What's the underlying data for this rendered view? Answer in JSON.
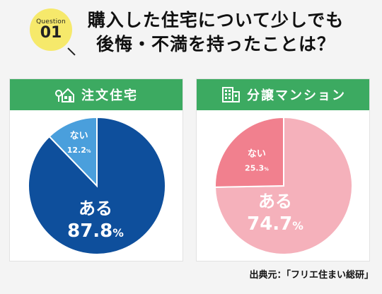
{
  "question": {
    "word": "Question",
    "number": "01"
  },
  "title": {
    "line1": "購入した住宅について少しでも",
    "line2": "後悔・不満を持ったことは？"
  },
  "source": "出典元：「フリエ住まい総研」",
  "chart_data": [
    {
      "type": "pie",
      "title": "注文住宅",
      "icon": "house-icon",
      "categories": [
        "ある",
        "ない"
      ],
      "values": [
        87.8,
        12.2
      ],
      "value_labels": [
        "87.8",
        "12.2"
      ],
      "unit": "%",
      "colors": [
        "#0e4f9c",
        "#4a9fdc"
      ]
    },
    {
      "type": "pie",
      "title": "分譲マンション",
      "icon": "apartment-building-icon",
      "categories": [
        "ある",
        "ない"
      ],
      "values": [
        74.7,
        25.3
      ],
      "value_labels": [
        "74.7",
        "25.3"
      ],
      "unit": "%",
      "colors": [
        "#f5b1bb",
        "#f1808e"
      ]
    }
  ]
}
